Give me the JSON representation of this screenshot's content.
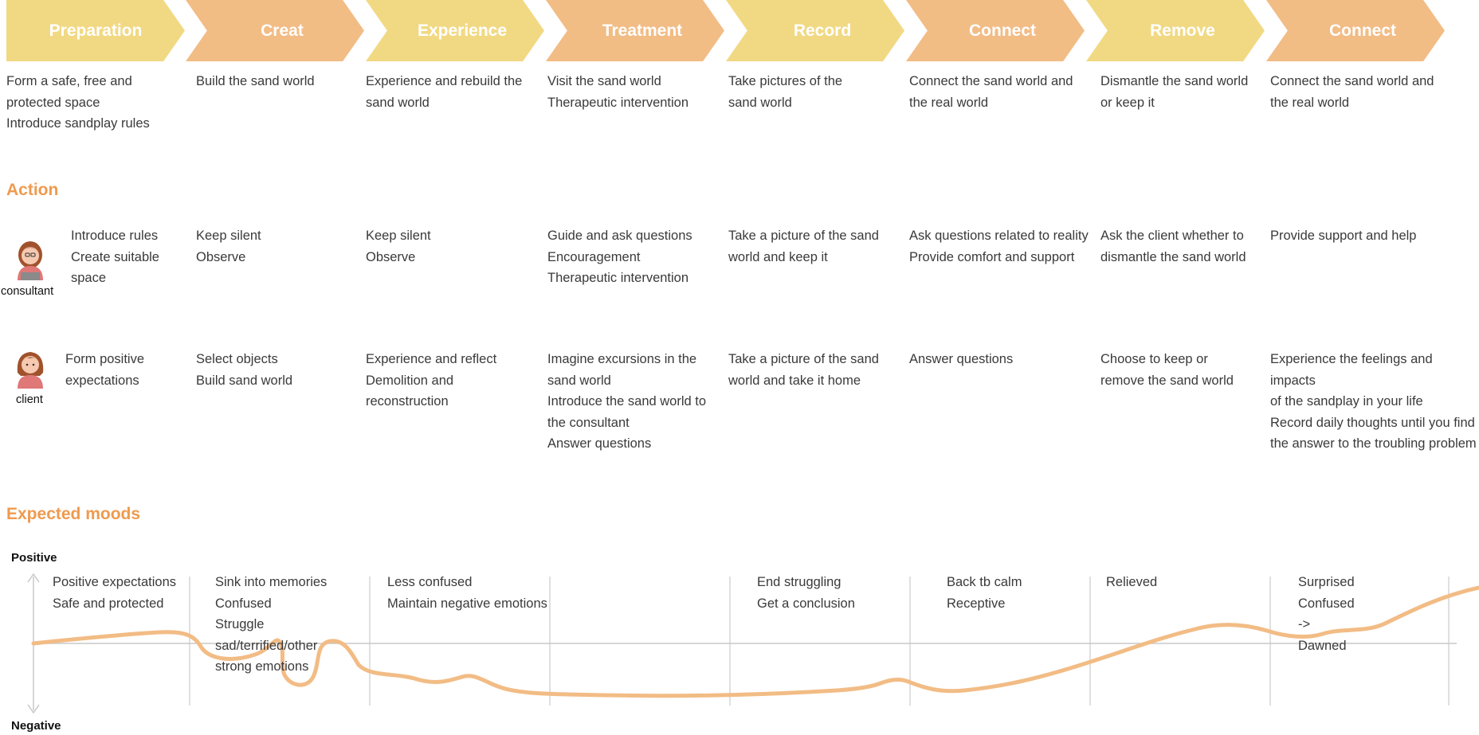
{
  "colors": {
    "chevron_yellow": "#f1d984",
    "chevron_orange": "#f2bc85",
    "section_title": "#ef9a4e",
    "mood_curve": "#f2bc85",
    "grid_line": "#d6d6d6"
  },
  "stages": [
    {
      "label": "Preparation",
      "color": "yellow"
    },
    {
      "label": "Creat",
      "color": "orange"
    },
    {
      "label": "Experience",
      "color": "yellow"
    },
    {
      "label": "Treatment",
      "color": "orange"
    },
    {
      "label": "Record",
      "color": "yellow"
    },
    {
      "label": "Connect",
      "color": "orange"
    },
    {
      "label": "Remove",
      "color": "yellow"
    },
    {
      "label": "Connect",
      "color": "orange"
    }
  ],
  "stage_descriptions": [
    "Form a safe, free and\nprotected space\nIntroduce sandplay rules",
    "Build the sand world",
    "Experience and rebuild the\nsand world",
    "Visit the sand world\nTherapeutic intervention",
    "Take pictures of the\nsand world",
    "Connect the sand world and\nthe real world",
    "Dismantle the sand world\nor keep it",
    "Connect the sand world and\nthe real world"
  ],
  "action": {
    "title": "Action",
    "consultant": {
      "label": "consultant",
      "icon": "consultant-avatar-icon",
      "items": [
        "Introduce rules\nCreate suitable\nspace",
        "Keep silent\nObserve",
        "Keep silent\nObserve",
        "Guide and ask questions\nEncouragement\nTherapeutic intervention",
        "Take a picture of the sand\nworld and keep it",
        "Ask questions related to reality\nProvide comfort and support",
        "Ask the client whether to\ndismantle the sand world",
        "Provide support and help"
      ]
    },
    "client": {
      "label": "client",
      "icon": "client-avatar-icon",
      "items": [
        "Form positive\nexpectations",
        "Select objects\nBuild sand world",
        "Experience and reflect\nDemolition and\nreconstruction",
        "Imagine excursions in the\nsand world\nIntroduce the sand world to\nthe consultant\nAnswer questions",
        "Take a picture of the sand\nworld and take it home",
        "Answer questions",
        "Choose to keep or\nremove the sand world",
        "Experience the feelings and impacts\nof the sandplay in your life\nRecord daily thoughts until you find\nthe answer to the troubling problem"
      ]
    }
  },
  "moods": {
    "title": "Expected moods",
    "positive_label": "Positive",
    "negative_label": "Negative",
    "texts": [
      "Positive expectations\nSafe and protected",
      "Sink into memories\nConfused\nStruggle\nsad/terrified/other\nstrong emotions",
      "Less confused\nMaintain negative emotions",
      "",
      "End struggling\nGet a conclusion",
      "Back tb calm\nReceptive",
      "Relieved",
      "Surprised\nConfused\n->\nDawned"
    ]
  }
}
